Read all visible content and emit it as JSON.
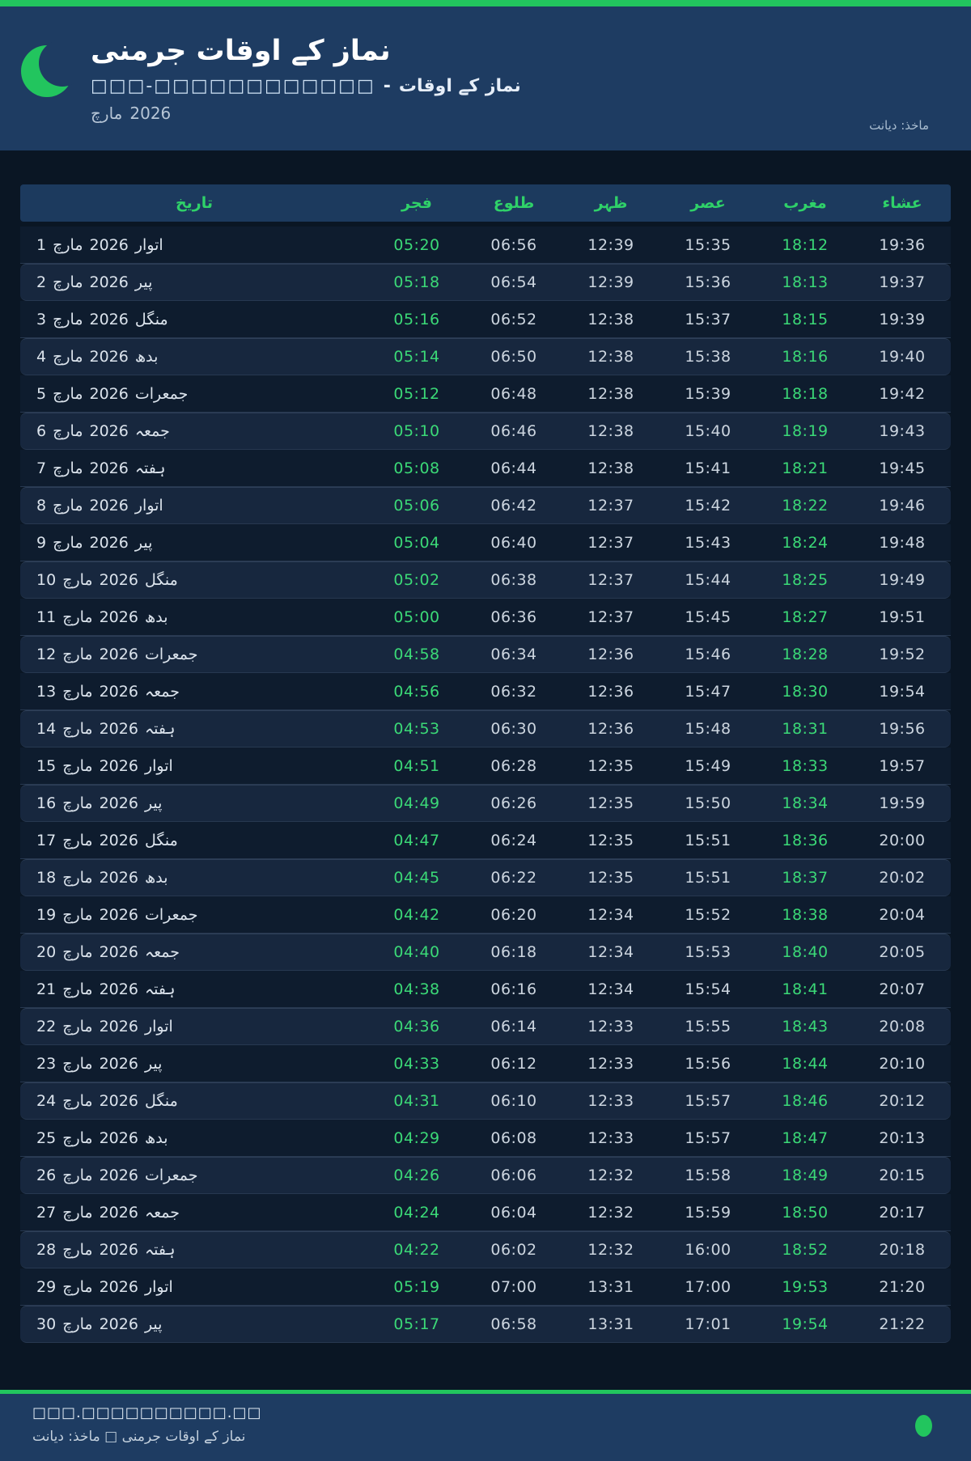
{
  "colors": {
    "accent_green": "#22c55e",
    "header_text_green": "#2fd169",
    "time_green": "#3bd977",
    "hero_bg": "#1e3c62",
    "page_bg": "#0a1624"
  },
  "header": {
    "title": "نماز کے اوقات جرمنی",
    "subtitle_urdu": "نماز کے اوقات",
    "subtitle_separator": "-",
    "subtitle_location": "□□□-□□□□□□□□□□□□",
    "month_label": "مارچ",
    "year_label": "2026",
    "source_label": "ماخذ: دیانت",
    "moon_icon": "crescent-moon"
  },
  "table": {
    "columns": [
      "تاریخ",
      "فجر",
      "طلوع",
      "ظہر",
      "عصر",
      "مغرب",
      "عشاء"
    ],
    "month": "مارچ",
    "year": "2026",
    "rows": [
      {
        "day": "1",
        "weekday": "اتوار",
        "fajr": "05:20",
        "sunrise": "06:56",
        "zuhr": "12:39",
        "asr": "15:35",
        "maghrib": "18:12",
        "isha": "19:36"
      },
      {
        "day": "2",
        "weekday": "پیر",
        "fajr": "05:18",
        "sunrise": "06:54",
        "zuhr": "12:39",
        "asr": "15:36",
        "maghrib": "18:13",
        "isha": "19:37"
      },
      {
        "day": "3",
        "weekday": "منگل",
        "fajr": "05:16",
        "sunrise": "06:52",
        "zuhr": "12:38",
        "asr": "15:37",
        "maghrib": "18:15",
        "isha": "19:39"
      },
      {
        "day": "4",
        "weekday": "بدھ",
        "fajr": "05:14",
        "sunrise": "06:50",
        "zuhr": "12:38",
        "asr": "15:38",
        "maghrib": "18:16",
        "isha": "19:40"
      },
      {
        "day": "5",
        "weekday": "جمعرات",
        "fajr": "05:12",
        "sunrise": "06:48",
        "zuhr": "12:38",
        "asr": "15:39",
        "maghrib": "18:18",
        "isha": "19:42"
      },
      {
        "day": "6",
        "weekday": "جمعہ",
        "fajr": "05:10",
        "sunrise": "06:46",
        "zuhr": "12:38",
        "asr": "15:40",
        "maghrib": "18:19",
        "isha": "19:43"
      },
      {
        "day": "7",
        "weekday": "ہفتہ",
        "fajr": "05:08",
        "sunrise": "06:44",
        "zuhr": "12:38",
        "asr": "15:41",
        "maghrib": "18:21",
        "isha": "19:45"
      },
      {
        "day": "8",
        "weekday": "اتوار",
        "fajr": "05:06",
        "sunrise": "06:42",
        "zuhr": "12:37",
        "asr": "15:42",
        "maghrib": "18:22",
        "isha": "19:46"
      },
      {
        "day": "9",
        "weekday": "پیر",
        "fajr": "05:04",
        "sunrise": "06:40",
        "zuhr": "12:37",
        "asr": "15:43",
        "maghrib": "18:24",
        "isha": "19:48"
      },
      {
        "day": "10",
        "weekday": "منگل",
        "fajr": "05:02",
        "sunrise": "06:38",
        "zuhr": "12:37",
        "asr": "15:44",
        "maghrib": "18:25",
        "isha": "19:49"
      },
      {
        "day": "11",
        "weekday": "بدھ",
        "fajr": "05:00",
        "sunrise": "06:36",
        "zuhr": "12:37",
        "asr": "15:45",
        "maghrib": "18:27",
        "isha": "19:51"
      },
      {
        "day": "12",
        "weekday": "جمعرات",
        "fajr": "04:58",
        "sunrise": "06:34",
        "zuhr": "12:36",
        "asr": "15:46",
        "maghrib": "18:28",
        "isha": "19:52"
      },
      {
        "day": "13",
        "weekday": "جمعہ",
        "fajr": "04:56",
        "sunrise": "06:32",
        "zuhr": "12:36",
        "asr": "15:47",
        "maghrib": "18:30",
        "isha": "19:54"
      },
      {
        "day": "14",
        "weekday": "ہفتہ",
        "fajr": "04:53",
        "sunrise": "06:30",
        "zuhr": "12:36",
        "asr": "15:48",
        "maghrib": "18:31",
        "isha": "19:56"
      },
      {
        "day": "15",
        "weekday": "اتوار",
        "fajr": "04:51",
        "sunrise": "06:28",
        "zuhr": "12:35",
        "asr": "15:49",
        "maghrib": "18:33",
        "isha": "19:57"
      },
      {
        "day": "16",
        "weekday": "پیر",
        "fajr": "04:49",
        "sunrise": "06:26",
        "zuhr": "12:35",
        "asr": "15:50",
        "maghrib": "18:34",
        "isha": "19:59"
      },
      {
        "day": "17",
        "weekday": "منگل",
        "fajr": "04:47",
        "sunrise": "06:24",
        "zuhr": "12:35",
        "asr": "15:51",
        "maghrib": "18:36",
        "isha": "20:00"
      },
      {
        "day": "18",
        "weekday": "بدھ",
        "fajr": "04:45",
        "sunrise": "06:22",
        "zuhr": "12:35",
        "asr": "15:51",
        "maghrib": "18:37",
        "isha": "20:02"
      },
      {
        "day": "19",
        "weekday": "جمعرات",
        "fajr": "04:42",
        "sunrise": "06:20",
        "zuhr": "12:34",
        "asr": "15:52",
        "maghrib": "18:38",
        "isha": "20:04"
      },
      {
        "day": "20",
        "weekday": "جمعہ",
        "fajr": "04:40",
        "sunrise": "06:18",
        "zuhr": "12:34",
        "asr": "15:53",
        "maghrib": "18:40",
        "isha": "20:05"
      },
      {
        "day": "21",
        "weekday": "ہفتہ",
        "fajr": "04:38",
        "sunrise": "06:16",
        "zuhr": "12:34",
        "asr": "15:54",
        "maghrib": "18:41",
        "isha": "20:07"
      },
      {
        "day": "22",
        "weekday": "اتوار",
        "fajr": "04:36",
        "sunrise": "06:14",
        "zuhr": "12:33",
        "asr": "15:55",
        "maghrib": "18:43",
        "isha": "20:08"
      },
      {
        "day": "23",
        "weekday": "پیر",
        "fajr": "04:33",
        "sunrise": "06:12",
        "zuhr": "12:33",
        "asr": "15:56",
        "maghrib": "18:44",
        "isha": "20:10"
      },
      {
        "day": "24",
        "weekday": "منگل",
        "fajr": "04:31",
        "sunrise": "06:10",
        "zuhr": "12:33",
        "asr": "15:57",
        "maghrib": "18:46",
        "isha": "20:12"
      },
      {
        "day": "25",
        "weekday": "بدھ",
        "fajr": "04:29",
        "sunrise": "06:08",
        "zuhr": "12:33",
        "asr": "15:57",
        "maghrib": "18:47",
        "isha": "20:13"
      },
      {
        "day": "26",
        "weekday": "جمعرات",
        "fajr": "04:26",
        "sunrise": "06:06",
        "zuhr": "12:32",
        "asr": "15:58",
        "maghrib": "18:49",
        "isha": "20:15"
      },
      {
        "day": "27",
        "weekday": "جمعہ",
        "fajr": "04:24",
        "sunrise": "06:04",
        "zuhr": "12:32",
        "asr": "15:59",
        "maghrib": "18:50",
        "isha": "20:17"
      },
      {
        "day": "28",
        "weekday": "ہفتہ",
        "fajr": "04:22",
        "sunrise": "06:02",
        "zuhr": "12:32",
        "asr": "16:00",
        "maghrib": "18:52",
        "isha": "20:18"
      },
      {
        "day": "29",
        "weekday": "اتوار",
        "fajr": "05:19",
        "sunrise": "07:00",
        "zuhr": "13:31",
        "asr": "17:00",
        "maghrib": "19:53",
        "isha": "21:20"
      },
      {
        "day": "30",
        "weekday": "پیر",
        "fajr": "05:17",
        "sunrise": "06:58",
        "zuhr": "13:31",
        "asr": "17:01",
        "maghrib": "19:54",
        "isha": "21:22"
      }
    ]
  },
  "footer": {
    "website": "□□□.□□□□□□□□□□.□□",
    "credit": "نماز کے اوقات جرمنی □ ماخذ: دیانت"
  }
}
